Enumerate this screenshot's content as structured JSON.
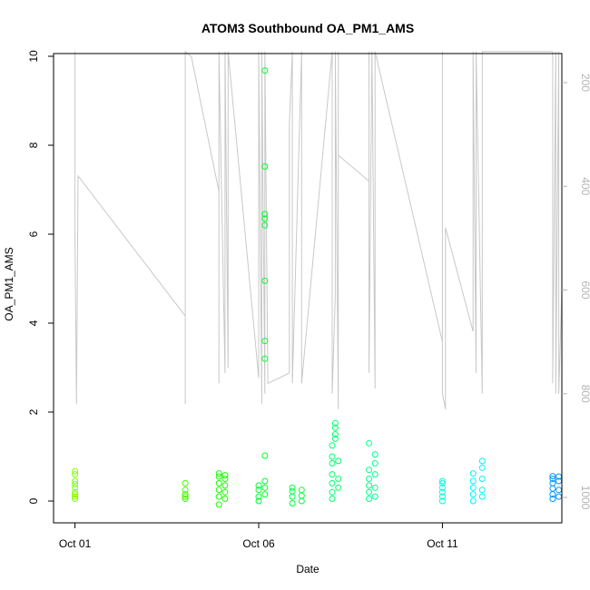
{
  "chart_data": {
    "type": "scatter",
    "title": "ATOM3 Southbound OA_PM1_AMS",
    "xlabel": "Date",
    "ylabel": "OA_PM1_AMS",
    "xlim": [
      "2017-09-30T10:00",
      "2017-10-14T06:00"
    ],
    "ylim": [
      0,
      10
    ],
    "x_ticks": [
      {
        "date": "2017-10-01",
        "label": "Oct 01"
      },
      {
        "date": "2017-10-06",
        "label": "Oct 06"
      },
      {
        "date": "2017-10-11",
        "label": "Oct 11"
      }
    ],
    "y_ticks": [
      0,
      2,
      4,
      6,
      8,
      10
    ],
    "y2_ticks": [
      200,
      400,
      600,
      800,
      1000
    ],
    "y2_range_reversed": [
      140,
      1050
    ],
    "y2_color": "#b4b4b4",
    "grid": false,
    "legend": "none",
    "series": [
      {
        "color": "#7fff00",
        "points": [
          [
            "2017-10-01T00:00",
            0.05
          ],
          [
            "2017-10-01T00:00",
            0.15
          ],
          [
            "2017-10-01T00:00",
            0.3
          ],
          [
            "2017-10-01T00:00",
            0.45
          ],
          [
            "2017-10-01T00:00",
            0.6
          ],
          [
            "2017-10-01T00:00",
            0.67
          ],
          [
            "2017-10-01T00:00",
            0.1
          ],
          [
            "2017-10-01T00:00",
            0.2
          ],
          [
            "2017-10-01T00:00",
            0.38
          ]
        ]
      },
      {
        "color": "#3fff00",
        "points": [
          [
            "2017-10-04T00:00",
            0.05
          ],
          [
            "2017-10-04T00:00",
            0.15
          ],
          [
            "2017-10-04T00:00",
            0.25
          ],
          [
            "2017-10-04T00:00",
            0.4
          ],
          [
            "2017-10-04T00:00",
            0.1
          ]
        ]
      },
      {
        "color": "#17ff00",
        "points": [
          [
            "2017-10-04T22:00",
            -0.08
          ],
          [
            "2017-10-04T22:00",
            0.1
          ],
          [
            "2017-10-04T22:00",
            0.25
          ],
          [
            "2017-10-04T22:00",
            0.4
          ],
          [
            "2017-10-04T22:00",
            0.55
          ],
          [
            "2017-10-04T22:00",
            0.62
          ],
          [
            "2017-10-05T02:00",
            0.05
          ],
          [
            "2017-10-05T02:00",
            0.2
          ],
          [
            "2017-10-05T02:00",
            0.35
          ],
          [
            "2017-10-05T02:00",
            0.5
          ],
          [
            "2017-10-05T02:00",
            0.58
          ]
        ]
      },
      {
        "color": "#00ff2a",
        "points": [
          [
            "2017-10-06T00:00",
            0.0
          ],
          [
            "2017-10-06T00:00",
            0.1
          ],
          [
            "2017-10-06T00:00",
            0.25
          ],
          [
            "2017-10-06T00:00",
            0.35
          ],
          [
            "2017-10-06T04:00",
            0.15
          ],
          [
            "2017-10-06T04:00",
            0.3
          ],
          [
            "2017-10-06T04:00",
            0.45
          ],
          [
            "2017-10-06T04:00",
            1.02
          ],
          [
            "2017-10-06T04:00",
            3.2
          ],
          [
            "2017-10-06T04:00",
            3.6
          ],
          [
            "2017-10-06T04:00",
            4.95
          ],
          [
            "2017-10-06T04:00",
            6.2
          ],
          [
            "2017-10-06T04:00",
            6.35
          ],
          [
            "2017-10-06T04:00",
            6.45
          ],
          [
            "2017-10-06T04:00",
            7.52
          ],
          [
            "2017-10-06T04:00",
            9.68
          ]
        ]
      },
      {
        "color": "#00ff40",
        "points": [
          [
            "2017-10-06T22:00",
            -0.05
          ],
          [
            "2017-10-06T22:00",
            0.1
          ],
          [
            "2017-10-06T22:00",
            0.22
          ],
          [
            "2017-10-06T22:00",
            0.3
          ],
          [
            "2017-10-07T04:00",
            0.0
          ],
          [
            "2017-10-07T04:00",
            0.12
          ],
          [
            "2017-10-07T04:00",
            0.25
          ]
        ]
      },
      {
        "color": "#00ff70",
        "points": [
          [
            "2017-10-08T00:00",
            0.05
          ],
          [
            "2017-10-08T00:00",
            0.2
          ],
          [
            "2017-10-08T00:00",
            0.4
          ],
          [
            "2017-10-08T00:00",
            0.6
          ],
          [
            "2017-10-08T00:00",
            0.85
          ],
          [
            "2017-10-08T00:00",
            1.0
          ],
          [
            "2017-10-08T00:00",
            1.25
          ],
          [
            "2017-10-08T02:00",
            1.4
          ],
          [
            "2017-10-08T02:00",
            1.5
          ],
          [
            "2017-10-08T02:00",
            1.65
          ],
          [
            "2017-10-08T02:00",
            1.75
          ],
          [
            "2017-10-08T04:00",
            0.3
          ],
          [
            "2017-10-08T04:00",
            0.5
          ],
          [
            "2017-10-08T04:00",
            0.9
          ]
        ]
      },
      {
        "color": "#00ff90",
        "points": [
          [
            "2017-10-09T00:00",
            0.05
          ],
          [
            "2017-10-09T00:00",
            0.2
          ],
          [
            "2017-10-09T00:00",
            0.35
          ],
          [
            "2017-10-09T00:00",
            0.5
          ],
          [
            "2017-10-09T00:00",
            0.7
          ],
          [
            "2017-10-09T00:00",
            1.3
          ],
          [
            "2017-10-09T04:00",
            0.1
          ],
          [
            "2017-10-09T04:00",
            0.3
          ],
          [
            "2017-10-09T04:00",
            0.6
          ],
          [
            "2017-10-09T04:00",
            0.85
          ],
          [
            "2017-10-09T04:00",
            1.05
          ]
        ]
      },
      {
        "color": "#00ffdd",
        "points": [
          [
            "2017-10-11T00:00",
            0.0
          ],
          [
            "2017-10-11T00:00",
            0.1
          ],
          [
            "2017-10-11T00:00",
            0.2
          ],
          [
            "2017-10-11T00:00",
            0.3
          ],
          [
            "2017-10-11T00:00",
            0.4
          ],
          [
            "2017-10-11T00:00",
            0.45
          ]
        ]
      },
      {
        "color": "#00f4ff",
        "points": [
          [
            "2017-10-11T20:00",
            0.0
          ],
          [
            "2017-10-11T20:00",
            0.15
          ],
          [
            "2017-10-11T20:00",
            0.3
          ],
          [
            "2017-10-11T20:00",
            0.45
          ],
          [
            "2017-10-11T20:00",
            0.62
          ],
          [
            "2017-10-12T02:00",
            0.1
          ],
          [
            "2017-10-12T02:00",
            0.25
          ],
          [
            "2017-10-12T02:00",
            0.5
          ],
          [
            "2017-10-12T02:00",
            0.75
          ],
          [
            "2017-10-12T02:00",
            0.9
          ]
        ]
      },
      {
        "color": "#0096ff",
        "points": [
          [
            "2017-10-14T00:00",
            0.05
          ],
          [
            "2017-10-14T00:00",
            0.15
          ],
          [
            "2017-10-14T00:00",
            0.28
          ],
          [
            "2017-10-14T00:00",
            0.4
          ],
          [
            "2017-10-14T00:00",
            0.5
          ],
          [
            "2017-10-14T00:00",
            0.56
          ],
          [
            "2017-10-14T04:00",
            0.1
          ],
          [
            "2017-10-14T04:00",
            0.25
          ],
          [
            "2017-10-14T04:00",
            0.45
          ],
          [
            "2017-10-14T04:00",
            0.55
          ]
        ]
      }
    ],
    "secondary_line": {
      "color": "#c8c8c8",
      "axis": "right",
      "points": [
        [
          "2017-10-01T00:00",
          140
        ],
        [
          "2017-10-01T00:00",
          500
        ],
        [
          "2017-10-01T01:00",
          820
        ],
        [
          "2017-10-01T02:00",
          380
        ],
        [
          "2017-10-04T00:00",
          650
        ],
        [
          "2017-10-04T00:00",
          820
        ],
        [
          "2017-10-04T00:00",
          510
        ],
        [
          "2017-10-04T00:00",
          140
        ],
        [
          "2017-10-04T04:00",
          150
        ],
        [
          "2017-10-04T22:00",
          410
        ],
        [
          "2017-10-04T22:00",
          780
        ],
        [
          "2017-10-04T22:00",
          140
        ],
        [
          "2017-10-05T02:00",
          760
        ],
        [
          "2017-10-05T02:00",
          140
        ],
        [
          "2017-10-05T04:00",
          750
        ],
        [
          "2017-10-05T04:00",
          140
        ],
        [
          "2017-10-06T00:00",
          770
        ],
        [
          "2017-10-06T00:00",
          140
        ],
        [
          "2017-10-06T02:00",
          820
        ],
        [
          "2017-10-06T02:00",
          140
        ],
        [
          "2017-10-06T04:00",
          800
        ],
        [
          "2017-10-06T04:00",
          140
        ],
        [
          "2017-10-06T06:00",
          780
        ],
        [
          "2017-10-06T20:00",
          760
        ],
        [
          "2017-10-06T20:00",
          280
        ],
        [
          "2017-10-06T22:00",
          140
        ],
        [
          "2017-10-06T22:00",
          780
        ],
        [
          "2017-10-07T04:00",
          140
        ],
        [
          "2017-10-07T04:00",
          780
        ],
        [
          "2017-10-08T00:00",
          140
        ],
        [
          "2017-10-08T00:00",
          800
        ],
        [
          "2017-10-08T02:00",
          610
        ],
        [
          "2017-10-08T02:00",
          140
        ],
        [
          "2017-10-08T04:00",
          830
        ],
        [
          "2017-10-08T04:00",
          140
        ],
        [
          "2017-10-08T04:00",
          340
        ],
        [
          "2017-10-09T00:00",
          390
        ],
        [
          "2017-10-09T00:00",
          140
        ],
        [
          "2017-10-09T00:00",
          760
        ],
        [
          "2017-10-09T02:00",
          140
        ],
        [
          "2017-10-09T04:00",
          790
        ],
        [
          "2017-10-09T04:00",
          140
        ],
        [
          "2017-10-11T00:00",
          700
        ],
        [
          "2017-10-11T00:00",
          140
        ],
        [
          "2017-10-11T00:00",
          800
        ],
        [
          "2017-10-11T02:00",
          830
        ],
        [
          "2017-10-11T02:00",
          480
        ],
        [
          "2017-10-11T20:00",
          680
        ],
        [
          "2017-10-11T20:00",
          140
        ],
        [
          "2017-10-11T22:00",
          760
        ],
        [
          "2017-10-11T22:00",
          140
        ],
        [
          "2017-10-12T02:00",
          800
        ],
        [
          "2017-10-12T02:00",
          140
        ],
        [
          "2017-10-14T00:00",
          140
        ],
        [
          "2017-10-14T00:00",
          780
        ],
        [
          "2017-10-14T02:00",
          140
        ],
        [
          "2017-10-14T02:00",
          800
        ],
        [
          "2017-10-14T04:00",
          140
        ],
        [
          "2017-10-14T04:00",
          800
        ],
        [
          "2017-10-14T06:00",
          600
        ]
      ]
    }
  }
}
